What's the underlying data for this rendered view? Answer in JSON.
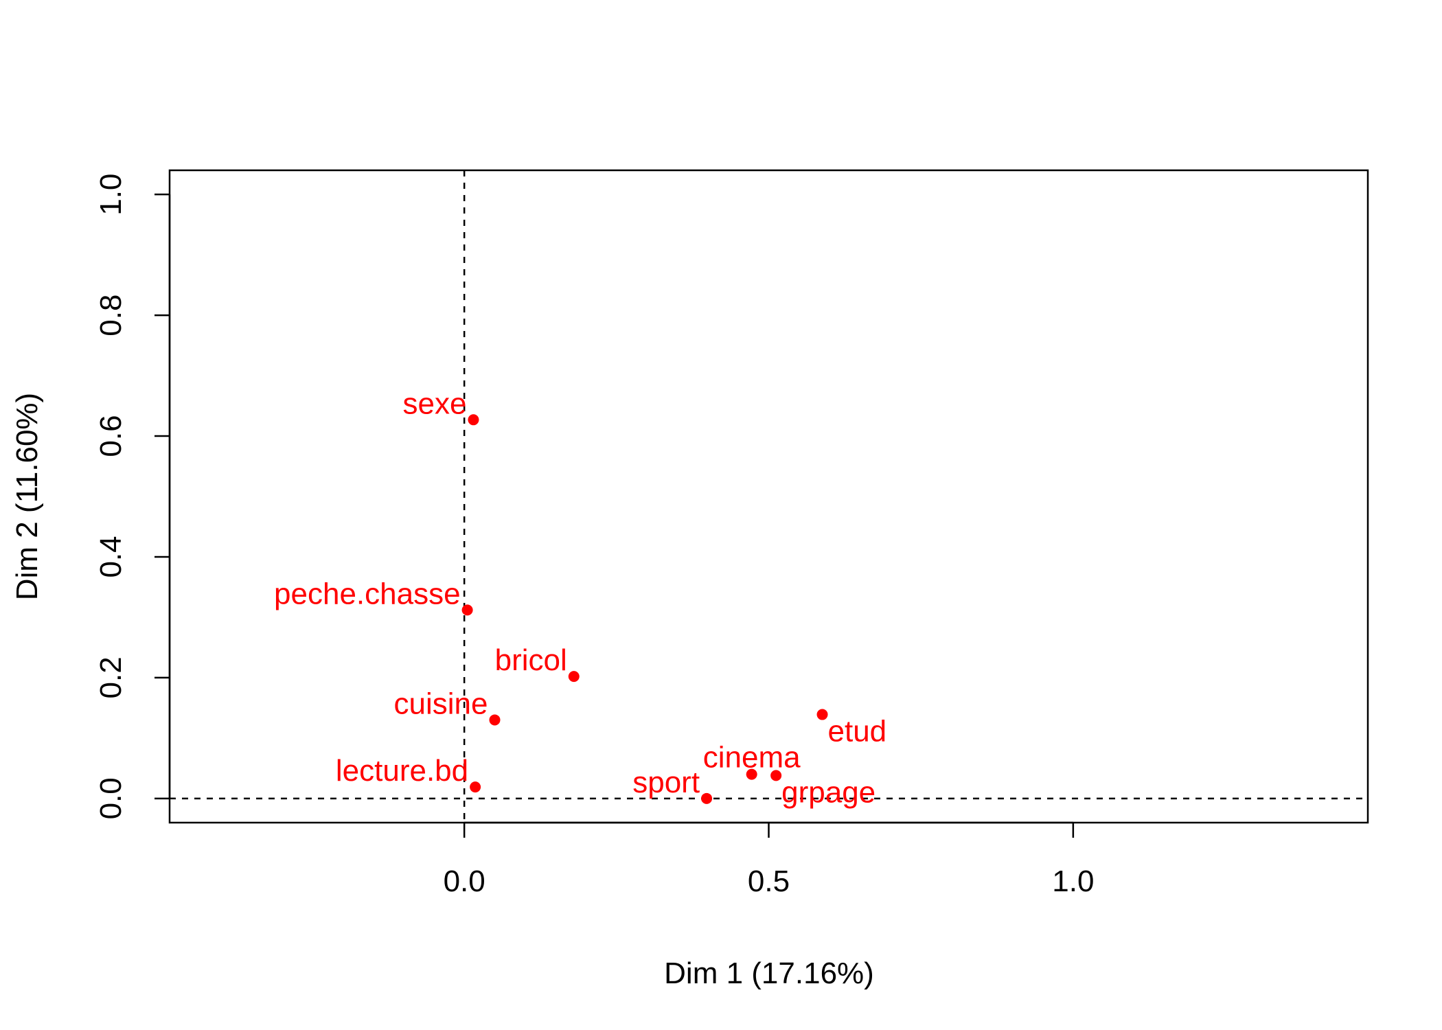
{
  "chart_data": {
    "type": "scatter",
    "title": "",
    "xlabel": "Dim 1 (17.16%)",
    "ylabel": "Dim 2 (11.60%)",
    "xlim": [
      -0.484,
      1.484
    ],
    "ylim": [
      -0.04,
      1.04
    ],
    "xticks": [
      "0.0",
      "0.5",
      "1.0"
    ],
    "yticks": [
      "0.0",
      "0.2",
      "0.4",
      "0.6",
      "0.8",
      "1.0"
    ],
    "reference_lines": {
      "x": 0,
      "y": 0
    },
    "point_color": "#ff0000",
    "points": [
      {
        "label": "sexe",
        "x": 0.015,
        "y": 0.627,
        "label_side": "left"
      },
      {
        "label": "peche.chasse",
        "x": 0.005,
        "y": 0.312,
        "label_side": "left"
      },
      {
        "label": "bricol",
        "x": 0.18,
        "y": 0.202,
        "label_side": "left"
      },
      {
        "label": "cuisine",
        "x": 0.05,
        "y": 0.13,
        "label_side": "left"
      },
      {
        "label": "lecture.bd",
        "x": 0.018,
        "y": 0.019,
        "label_side": "left"
      },
      {
        "label": "sport",
        "x": 0.398,
        "y": 0.0,
        "label_side": "left"
      },
      {
        "label": "cinema",
        "x": 0.472,
        "y": 0.04,
        "label_side": "above"
      },
      {
        "label": "grpage",
        "x": 0.512,
        "y": 0.038,
        "label_side": "right"
      },
      {
        "label": "etud",
        "x": 0.588,
        "y": 0.139,
        "label_side": "right"
      }
    ]
  }
}
